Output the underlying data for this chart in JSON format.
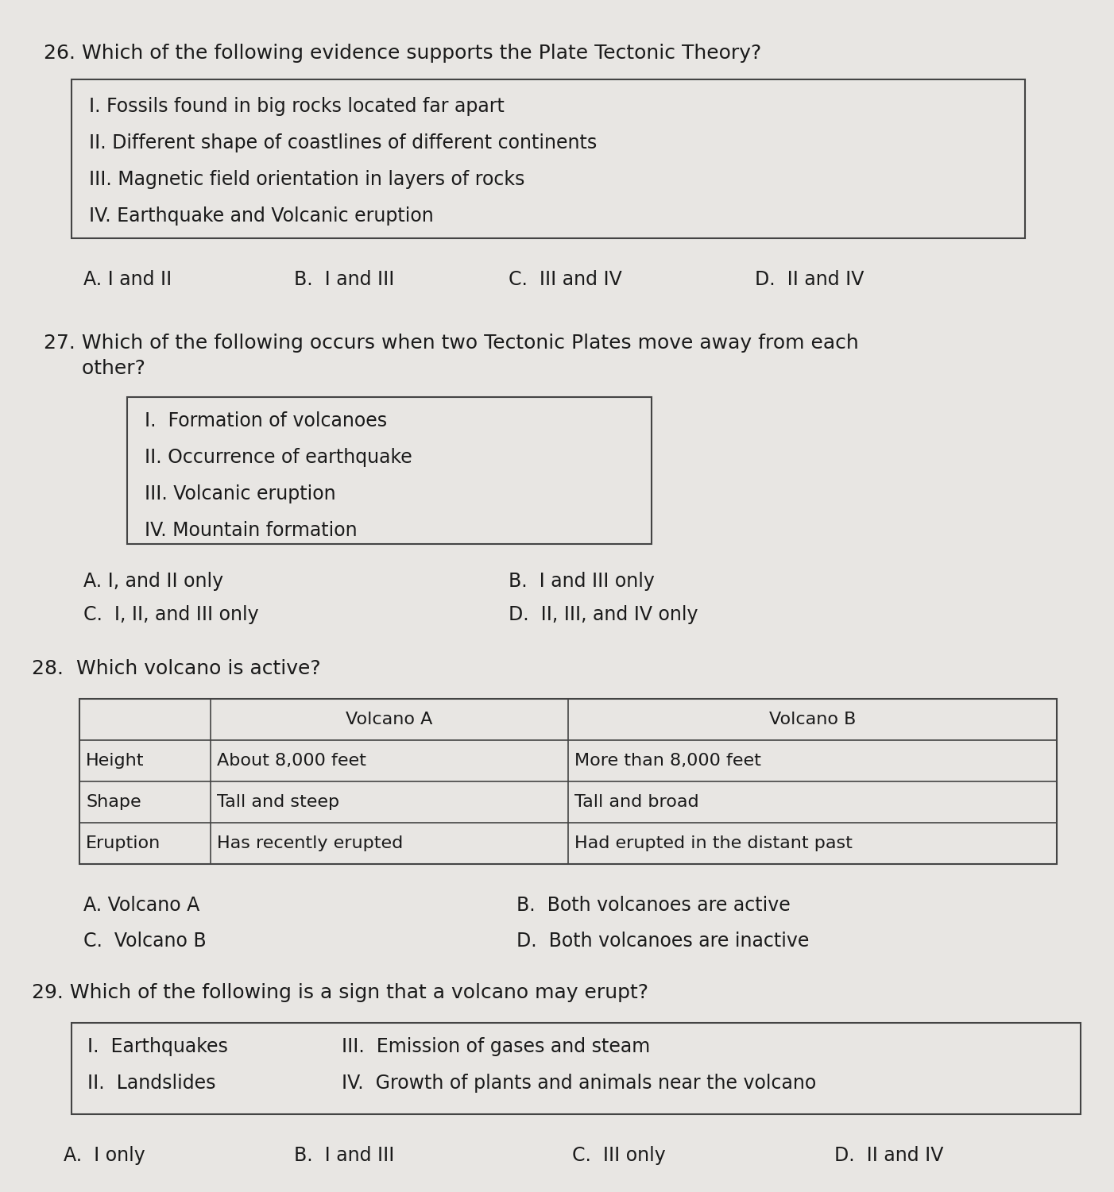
{
  "bg_color": "#e8e6e3",
  "text_color": "#1a1a1a",
  "box_edge_color": "#444444",
  "font_size_question": 18,
  "font_size_item": 17,
  "font_size_choice": 17,
  "font_size_table": 16,
  "q26_question": "26. Which of the following evidence supports the Plate Tectonic Theory?",
  "q26_items": [
    "I. Fossils found in big rocks located far apart",
    "II. Different shape of coastlines of different continents",
    "III. Magnetic field orientation in layers of rocks",
    "IV. Earthquake and Volcanic eruption"
  ],
  "q26_choices": [
    "A. I and II",
    "B.  I and III",
    "C.  III and IV",
    "D.  II and IV"
  ],
  "q27_question_line1": "27. Which of the following occurs when two Tectonic Plates move away from each",
  "q27_question_line2": "      other?",
  "q27_items": [
    "I.  Formation of volcanoes",
    "II. Occurrence of earthquake",
    "III. Volcanic eruption",
    "IV. Mountain formation"
  ],
  "q27_choices_left": [
    "A. I, and II only",
    "C.  I, II, and III only"
  ],
  "q27_choices_right": [
    "B.  I and III only",
    "D.  II, III, and IV only"
  ],
  "q28_question": "28.  Which volcano is active?",
  "q28_table_col0": [
    "",
    "Height",
    "Shape",
    "Eruption"
  ],
  "q28_table_col1": [
    "Volcano A",
    "About 8,000 feet",
    "Tall and steep",
    "Has recently erupted"
  ],
  "q28_table_col2": [
    "Volcano B",
    "More than 8,000 feet",
    "Tall and broad",
    "Had erupted in the distant past"
  ],
  "q28_choices_left": [
    "A. Volcano A",
    "C.  Volcano B"
  ],
  "q28_choices_right": [
    "B.  Both volcanoes are active",
    "D.  Both volcanoes are inactive"
  ],
  "q29_question": "29. Which of the following is a sign that a volcano may erupt?",
  "q29_items_left": [
    "I.  Earthquakes",
    "II.  Landslides"
  ],
  "q29_items_right": [
    "III.  Emission of gases and steam",
    "IV.  Growth of plants and animals near the volcano"
  ],
  "q29_choices": [
    "A.  I only",
    "B.  I and III",
    "C.  III only",
    "D.  II and IV"
  ]
}
